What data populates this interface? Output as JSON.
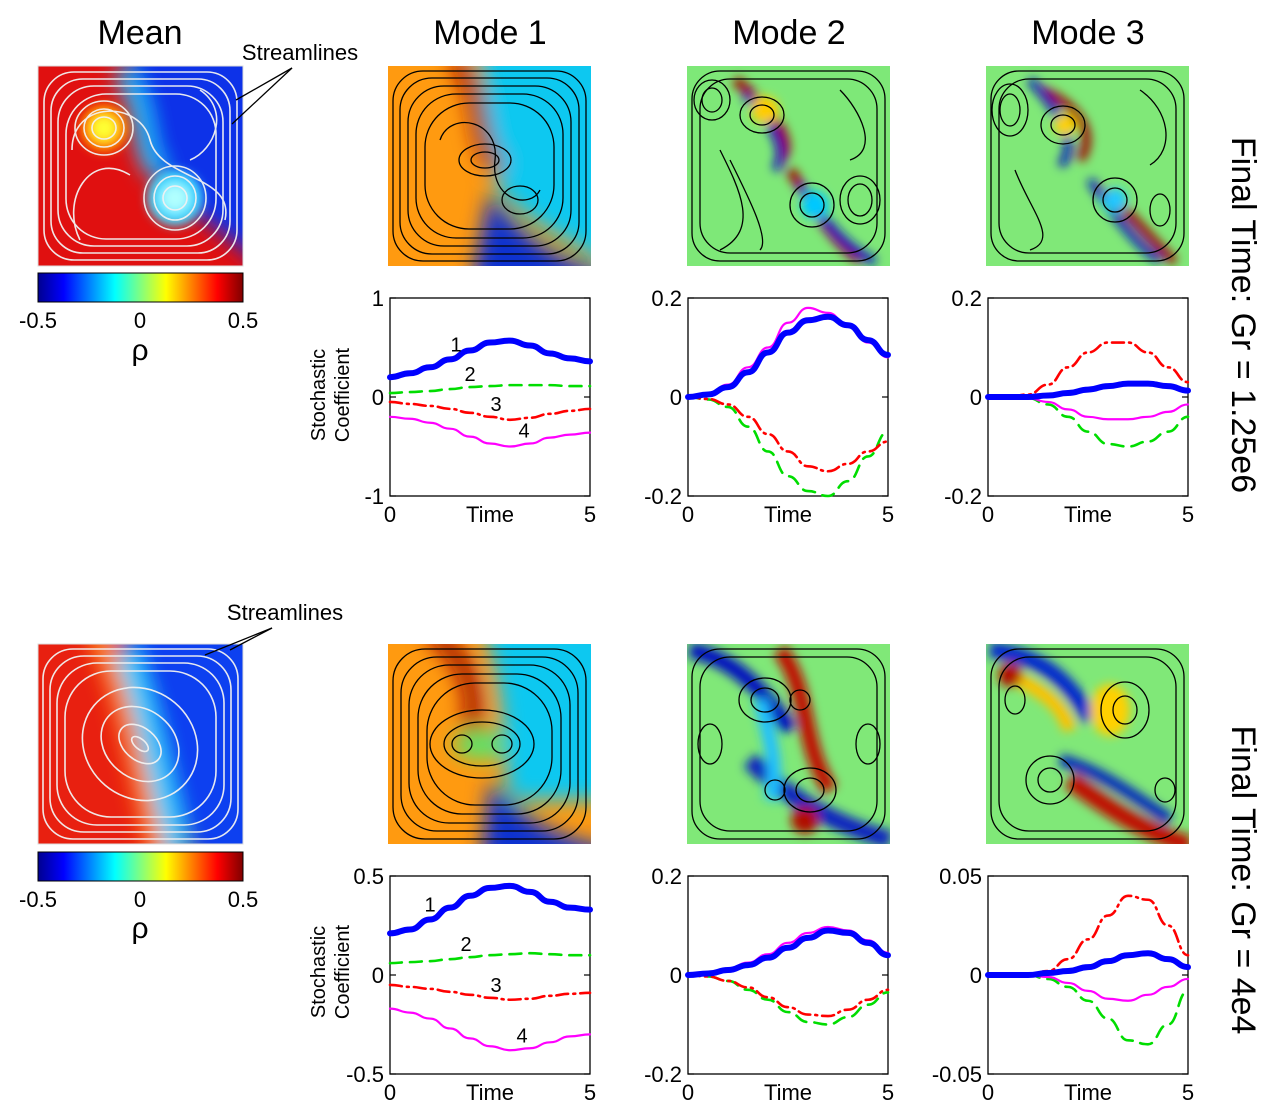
{
  "titles": {
    "mean": "Mean",
    "mode1": "Mode 1",
    "mode2": "Mode 2",
    "mode3": "Mode 3"
  },
  "annotation": "Streamlines",
  "colorbar": {
    "min_label": "-0.5",
    "mid_label": "0",
    "max_label": "0.5",
    "label": "ρ",
    "colors": [
      "#00008f",
      "#0000ff",
      "#0080ff",
      "#00ffff",
      "#80ff80",
      "#ffff00",
      "#ff8000",
      "#ff0000",
      "#800000"
    ]
  },
  "side_labels": {
    "top": "Final Time: Gr = 1.25e6",
    "bottom": "Final Time: Gr = 4e4"
  },
  "ylabel_line1": "Stochastic",
  "ylabel_line2": "Coefficient",
  "xlabel": "Time",
  "series_colors": [
    "#0000ff",
    "#00dd00",
    "#ff0000",
    "#ff00ff"
  ],
  "mode_numbers": [
    "1",
    "2",
    "3",
    "4"
  ],
  "chart_data": [
    {
      "type": "line",
      "row": "Gr = 1.25e6",
      "mode": "Mode 1",
      "xlabel": "Time",
      "ylabel": "Stochastic Coefficient",
      "xlim": [
        0,
        5
      ],
      "ylim": [
        -1,
        1
      ],
      "xticks": [
        "0",
        "5"
      ],
      "yticks": [
        "-1",
        "0",
        "1"
      ],
      "x": [
        0,
        0.5,
        1,
        1.5,
        2,
        2.5,
        3,
        3.5,
        4,
        4.5,
        5
      ],
      "series": [
        {
          "name": "1",
          "style": "thick",
          "values": [
            0.2,
            0.24,
            0.3,
            0.38,
            0.47,
            0.55,
            0.57,
            0.52,
            0.44,
            0.39,
            0.36
          ]
        },
        {
          "name": "2",
          "style": "dashed",
          "values": [
            0.04,
            0.05,
            0.06,
            0.08,
            0.1,
            0.11,
            0.12,
            0.12,
            0.12,
            0.11,
            0.11
          ]
        },
        {
          "name": "3",
          "style": "dashdot",
          "values": [
            -0.05,
            -0.07,
            -0.09,
            -0.12,
            -0.16,
            -0.2,
            -0.23,
            -0.21,
            -0.17,
            -0.14,
            -0.12
          ]
        },
        {
          "name": "4",
          "style": "solid",
          "values": [
            -0.2,
            -0.22,
            -0.26,
            -0.32,
            -0.4,
            -0.47,
            -0.5,
            -0.47,
            -0.41,
            -0.38,
            -0.36
          ]
        }
      ]
    },
    {
      "type": "line",
      "row": "Gr = 1.25e6",
      "mode": "Mode 2",
      "xlabel": "Time",
      "xlim": [
        0,
        5
      ],
      "ylim": [
        -0.2,
        0.2
      ],
      "xticks": [
        "0",
        "5"
      ],
      "yticks": [
        "-0.2",
        "0",
        "0.2"
      ],
      "x": [
        0,
        0.5,
        1,
        1.5,
        2,
        2.5,
        3,
        3.5,
        4,
        4.5,
        5
      ],
      "series": [
        {
          "name": "1",
          "style": "thick",
          "values": [
            0,
            0.005,
            0.02,
            0.05,
            0.09,
            0.13,
            0.155,
            0.162,
            0.145,
            0.115,
            0.085
          ]
        },
        {
          "name": "2",
          "style": "dashed",
          "values": [
            0,
            -0.005,
            -0.02,
            -0.06,
            -0.11,
            -0.16,
            -0.19,
            -0.2,
            -0.17,
            -0.12,
            -0.07
          ]
        },
        {
          "name": "3",
          "style": "dashdot",
          "values": [
            0,
            -0.004,
            -0.015,
            -0.04,
            -0.075,
            -0.11,
            -0.14,
            -0.15,
            -0.135,
            -0.11,
            -0.09
          ]
        },
        {
          "name": "4",
          "style": "solid",
          "values": [
            0,
            0.006,
            0.025,
            0.06,
            0.1,
            0.15,
            0.18,
            0.17,
            0.145,
            0.11,
            0.08
          ]
        }
      ]
    },
    {
      "type": "line",
      "row": "Gr = 1.25e6",
      "mode": "Mode 3",
      "xlabel": "Time",
      "xlim": [
        0,
        5
      ],
      "ylim": [
        -0.2,
        0.2
      ],
      "xticks": [
        "0",
        "5"
      ],
      "yticks": [
        "-0.2",
        "0",
        "0.2"
      ],
      "x": [
        0,
        0.5,
        1,
        1.5,
        2,
        2.5,
        3,
        3.5,
        4,
        4.5,
        5
      ],
      "series": [
        {
          "name": "1",
          "style": "thick",
          "values": [
            0,
            0,
            0,
            0.003,
            0.008,
            0.015,
            0.022,
            0.027,
            0.027,
            0.022,
            0.013
          ]
        },
        {
          "name": "2",
          "style": "dashed",
          "values": [
            0,
            0,
            -0.002,
            -0.015,
            -0.04,
            -0.07,
            -0.095,
            -0.1,
            -0.09,
            -0.07,
            -0.04
          ]
        },
        {
          "name": "3",
          "style": "dashdot",
          "values": [
            0,
            0,
            0.005,
            0.025,
            0.06,
            0.09,
            0.11,
            0.11,
            0.09,
            0.06,
            0.03
          ]
        },
        {
          "name": "4",
          "style": "solid",
          "values": [
            0,
            0,
            -0.002,
            -0.01,
            -0.025,
            -0.04,
            -0.045,
            -0.045,
            -0.04,
            -0.03,
            -0.015
          ]
        }
      ]
    },
    {
      "type": "line",
      "row": "Gr = 4e4",
      "mode": "Mode 1",
      "xlabel": "Time",
      "ylabel": "Stochastic Coefficient",
      "xlim": [
        0,
        5
      ],
      "ylim": [
        -0.5,
        0.5
      ],
      "xticks": [
        "0",
        "5"
      ],
      "yticks": [
        "-0.5",
        "0",
        "0.5"
      ],
      "x": [
        0,
        0.5,
        1,
        1.5,
        2,
        2.5,
        3,
        3.5,
        4,
        4.5,
        5
      ],
      "series": [
        {
          "name": "1",
          "style": "thick",
          "values": [
            0.21,
            0.23,
            0.28,
            0.34,
            0.4,
            0.44,
            0.45,
            0.42,
            0.37,
            0.34,
            0.33
          ]
        },
        {
          "name": "2",
          "style": "dashed",
          "values": [
            0.06,
            0.065,
            0.07,
            0.08,
            0.09,
            0.1,
            0.105,
            0.11,
            0.105,
            0.1,
            0.1
          ]
        },
        {
          "name": "3",
          "style": "dashdot",
          "values": [
            -0.05,
            -0.06,
            -0.07,
            -0.085,
            -0.1,
            -0.115,
            -0.125,
            -0.12,
            -0.105,
            -0.095,
            -0.09
          ]
        },
        {
          "name": "4",
          "style": "solid",
          "values": [
            -0.17,
            -0.19,
            -0.22,
            -0.27,
            -0.32,
            -0.36,
            -0.38,
            -0.37,
            -0.34,
            -0.31,
            -0.3
          ]
        }
      ]
    },
    {
      "type": "line",
      "row": "Gr = 4e4",
      "mode": "Mode 2",
      "xlabel": "Time",
      "xlim": [
        0,
        5
      ],
      "ylim": [
        -0.2,
        0.2
      ],
      "xticks": [
        "0",
        "5"
      ],
      "yticks": [
        "-0.2",
        "0",
        "0.2"
      ],
      "x": [
        0,
        0.5,
        1,
        1.5,
        2,
        2.5,
        3,
        3.5,
        4,
        4.5,
        5
      ],
      "series": [
        {
          "name": "1",
          "style": "thick",
          "values": [
            0,
            0.003,
            0.01,
            0.02,
            0.035,
            0.055,
            0.075,
            0.09,
            0.085,
            0.065,
            0.04
          ]
        },
        {
          "name": "2",
          "style": "dashed",
          "values": [
            0,
            -0.003,
            -0.012,
            -0.03,
            -0.05,
            -0.075,
            -0.095,
            -0.1,
            -0.085,
            -0.06,
            -0.035
          ]
        },
        {
          "name": "3",
          "style": "dashdot",
          "values": [
            0,
            -0.003,
            -0.012,
            -0.025,
            -0.045,
            -0.065,
            -0.08,
            -0.083,
            -0.07,
            -0.05,
            -0.03
          ]
        },
        {
          "name": "4",
          "style": "solid",
          "values": [
            0,
            0.003,
            0.012,
            0.025,
            0.042,
            0.065,
            0.085,
            0.097,
            0.09,
            0.07,
            0.045
          ]
        }
      ]
    },
    {
      "type": "line",
      "row": "Gr = 4e4",
      "mode": "Mode 3",
      "xlabel": "Time",
      "xlim": [
        0,
        5
      ],
      "ylim": [
        -0.05,
        0.05
      ],
      "xticks": [
        "0",
        "5"
      ],
      "yticks": [
        "-0.05",
        "0",
        "0.05"
      ],
      "x": [
        0,
        0.5,
        1,
        1.5,
        2,
        2.5,
        3,
        3.5,
        4,
        4.5,
        5
      ],
      "series": [
        {
          "name": "1",
          "style": "thick",
          "values": [
            0,
            0,
            0,
            0.001,
            0.002,
            0.004,
            0.007,
            0.01,
            0.011,
            0.008,
            0.004
          ]
        },
        {
          "name": "2",
          "style": "dashed",
          "values": [
            0,
            0,
            0,
            -0.002,
            -0.006,
            -0.013,
            -0.022,
            -0.033,
            -0.035,
            -0.025,
            -0.008
          ]
        },
        {
          "name": "3",
          "style": "dashdot",
          "values": [
            0,
            0,
            0,
            0.002,
            0.008,
            0.018,
            0.03,
            0.04,
            0.038,
            0.025,
            0.01
          ]
        },
        {
          "name": "4",
          "style": "solid",
          "values": [
            0,
            0,
            0,
            -0.001,
            -0.004,
            -0.008,
            -0.012,
            -0.013,
            -0.01,
            -0.006,
            -0.002
          ]
        }
      ]
    }
  ]
}
